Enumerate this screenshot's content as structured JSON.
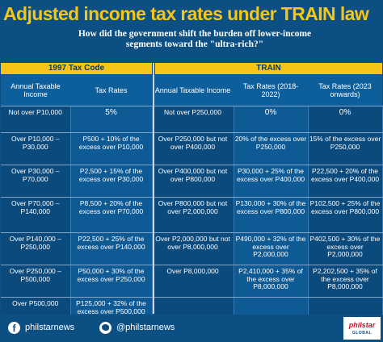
{
  "title": "Adjusted income tax rates under TRAIN law",
  "subtitle": "How did the government shift the burden off lower-income segments toward the \"ultra-rich?\"",
  "bands": {
    "left": "1997 Tax Code",
    "right": "TRAIN"
  },
  "headers": [
    "Annual Taxable Income",
    "Tax Rates",
    "Annual Taxable Income",
    "Tax Rates (2018-2022)",
    "Tax Rates (2023 onwards)"
  ],
  "rows": [
    [
      "Not over P10,000",
      "5%",
      "Not over P250,000",
      "0%",
      "0%"
    ],
    [
      "Over P10,000 – P30,000",
      "P500 + 10% of the excess over P10,000",
      "Over P250,000 but not over P400,000",
      "20% of the excess over P250,000",
      "15% of the excess over P250,000"
    ],
    [
      "Over P30,000 – P70,000",
      "P2,500 + 15% of the excess over P30,000",
      "Over P400,000 but not over P800,000",
      "P30,000 + 25% of the excess over P400,000",
      "P22,500 + 20% of the excess over P400,000"
    ],
    [
      "Over P70,000 – P140,000",
      "P8,500 + 20% of the excess over P70,000",
      "Over P800,000 but not over P2,000,000",
      "P130,000 + 30% of the excess over P800,000",
      "P102,500 + 25% of the excess over P800,000"
    ],
    [
      "Over P140,000 – P250,000",
      "P22,500 + 25% of the excess over P140,000",
      "Over P2,000,000 but not over P8,000,000",
      "P490,000 + 32% of the excess over P2,000,000",
      "P402,500 + 30% of the excess over P2,000,000"
    ],
    [
      "Over P250,000 – P500,000",
      "P50,000 + 30% of the excess over P250,000",
      "Over P8,000,000",
      "P2,410,000 + 35% of the excess over P8,000,000",
      "P2,202,500 + 35% of the excess over P8,000,000"
    ],
    [
      "Over P500,000",
      "P125,000 + 32% of the excess over P500,000",
      "",
      "",
      ""
    ]
  ],
  "footer": {
    "facebook": "philstarnews",
    "twitter": "@philstarnews",
    "logo_main": "philstar",
    "logo_sub": "GLOBAL"
  },
  "colors": {
    "accent": "#f7c518",
    "background": "#0c4f83"
  }
}
